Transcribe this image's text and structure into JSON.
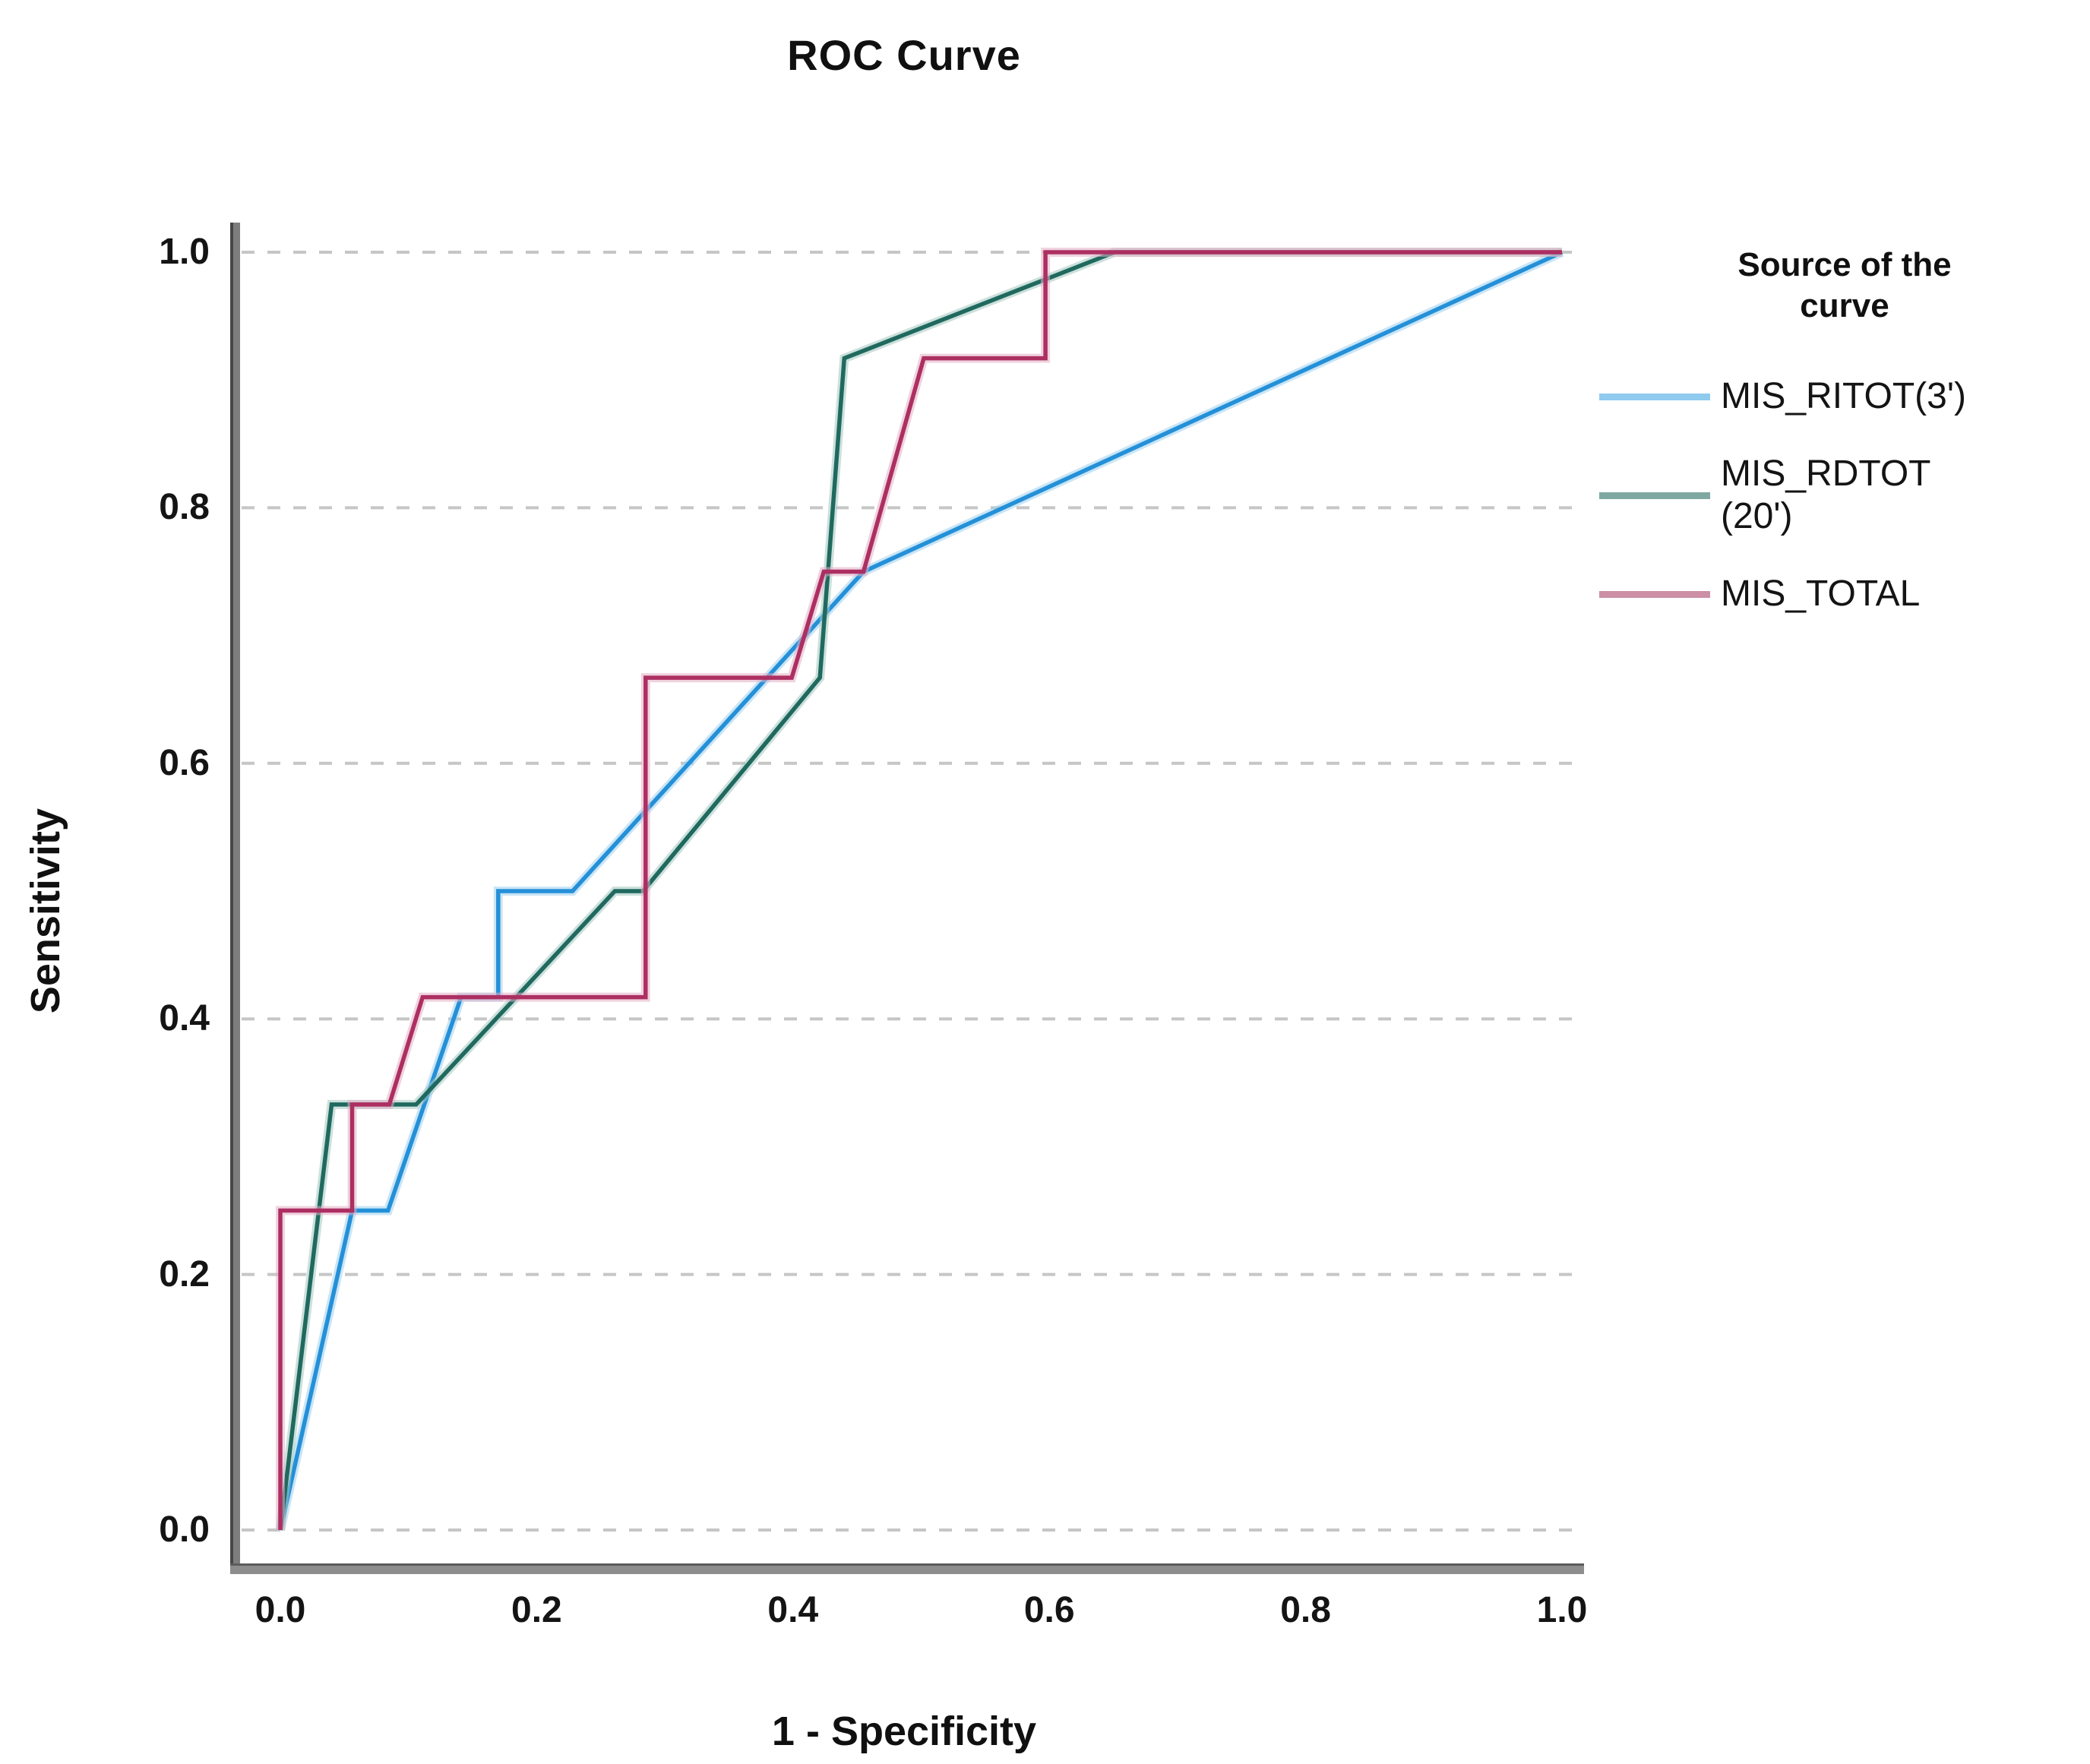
{
  "window": {
    "background": "#ffffff"
  },
  "chart_data": {
    "type": "line",
    "subtype": "roc-curve",
    "title": "ROC Curve",
    "xlabel": "1 - Specificity",
    "ylabel": "Sensitivity",
    "xlim": [
      0,
      1
    ],
    "ylim": [
      0,
      1
    ],
    "x_ticks": [
      "0.0",
      "0.2",
      "0.4",
      "0.6",
      "0.8",
      "1.0"
    ],
    "y_ticks": [
      "0.0",
      "0.2",
      "0.4",
      "0.6",
      "0.8",
      "1.0"
    ],
    "grid": "horizontal-dashed",
    "grid_color": "#c6c6c6",
    "axis_spine_color": "#7d7d7d",
    "legend": {
      "position": "right",
      "title_lines": [
        "Source of the",
        "curve"
      ]
    },
    "series": [
      {
        "name": "MIS_RITOT(3')",
        "label_lines": [
          "MIS_RITOT(3')"
        ],
        "color": "#2490d8",
        "halo_color": "#9fd0ef",
        "swatch_color": "#8ecbee",
        "points": [
          [
            0,
            0
          ],
          [
            0.056,
            0.25
          ],
          [
            0.084,
            0.25
          ],
          [
            0.141,
            0.417
          ],
          [
            0.17,
            0.417
          ],
          [
            0.17,
            0.5
          ],
          [
            0.228,
            0.5
          ],
          [
            0.455,
            0.75
          ],
          [
            1,
            1
          ]
        ]
      },
      {
        "name": "MIS_RDTOT (20')",
        "label_lines": [
          "MIS_RDTOT",
          "(20')"
        ],
        "color": "#20695f",
        "halo_color": "#a3c6c0",
        "swatch_color": "#7fa8a2",
        "points": [
          [
            0,
            0
          ],
          [
            0.04,
            0.333
          ],
          [
            0.106,
            0.333
          ],
          [
            0.261,
            0.5
          ],
          [
            0.283,
            0.5
          ],
          [
            0.421,
            0.667
          ],
          [
            0.44,
            0.917
          ],
          [
            0.651,
            1
          ],
          [
            1,
            1
          ]
        ]
      },
      {
        "name": "MIS_TOTAL",
        "label_lines": [
          "MIS_TOTAL"
        ],
        "color": "#ad2f62",
        "halo_color": "#e2aec5",
        "swatch_color": "#cc8fa5",
        "points": [
          [
            0,
            0
          ],
          [
            0,
            0.25
          ],
          [
            0.056,
            0.25
          ],
          [
            0.056,
            0.333
          ],
          [
            0.085,
            0.333
          ],
          [
            0.111,
            0.417
          ],
          [
            0.285,
            0.417
          ],
          [
            0.285,
            0.667
          ],
          [
            0.399,
            0.667
          ],
          [
            0.424,
            0.75
          ],
          [
            0.455,
            0.75
          ],
          [
            0.502,
            0.917
          ],
          [
            0.597,
            0.917
          ],
          [
            0.597,
            1
          ],
          [
            1,
            1
          ]
        ]
      }
    ]
  }
}
